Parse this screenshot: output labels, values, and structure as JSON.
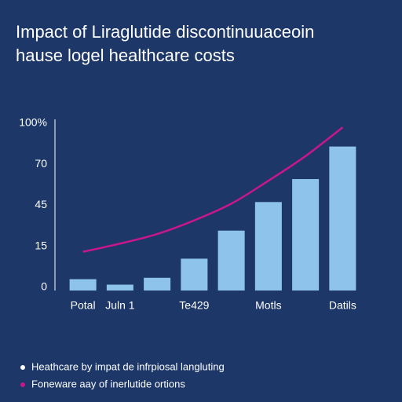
{
  "chart_data": {
    "type": "bar",
    "title_lines": [
      "Impact of Liraglutide discontinuuaceoin",
      "hause logel healthcare costs"
    ],
    "categories": [
      "Potal",
      "Juln 1",
      null,
      "Te429",
      null,
      "Motls",
      null,
      "Datils"
    ],
    "series": [
      {
        "name": "Heathcare by impat de infrpiosal langluting",
        "color": "#8ec4ec",
        "type": "bar",
        "values": [
          3,
          1,
          3.5,
          10.5,
          26.5,
          47,
          61,
          83
        ]
      },
      {
        "name": "Foneware aay of inerlutide ortions",
        "color": "#c8168c",
        "type": "line",
        "values": [
          13,
          17,
          24,
          34,
          46,
          60,
          76,
          97
        ]
      }
    ],
    "ylim": [
      0,
      100
    ],
    "yticks": [
      0,
      15,
      45,
      70,
      {
        "value": 100,
        "label": "100%"
      }
    ],
    "grid": false
  }
}
